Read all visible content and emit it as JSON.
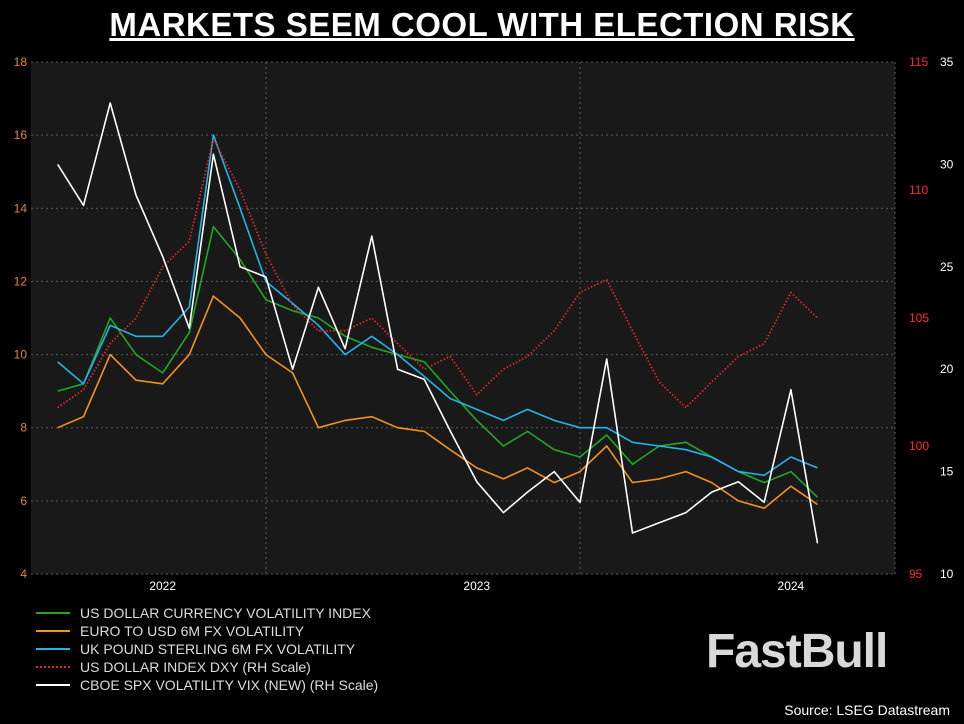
{
  "title": "MARKETS SEEM COOL WITH ELECTION RISK",
  "source": "Source: LSEG Datastream",
  "logo": "FastBull",
  "colors": {
    "background": "#000000",
    "plot_background": "#191919",
    "grid": "#5a5a5a",
    "left_axis": "#e8852a",
    "dxy_axis": "#ff2a2a",
    "vix_axis": "#ffffff"
  },
  "chart_data": {
    "type": "line",
    "x_ticks": [
      "2022",
      "2023",
      "2024"
    ],
    "x_range": [
      "2021-08-01",
      "2024-05-01"
    ],
    "axes": {
      "left": {
        "range": [
          4,
          18
        ],
        "ticks": [
          4,
          6,
          8,
          10,
          12,
          14,
          16,
          18
        ]
      },
      "right_dxy": {
        "range": [
          95,
          115
        ],
        "ticks": [
          95,
          100,
          105,
          110,
          115
        ]
      },
      "right_vix": {
        "range": [
          10,
          35
        ],
        "ticks": [
          10,
          15,
          20,
          25,
          30,
          35
        ]
      }
    },
    "grid": true,
    "legend_position": "bottom-left",
    "series": [
      {
        "name": "US DOLLAR CURRENCY VOLATILITY INDEX",
        "color": "#1fa824",
        "style": "solid",
        "axis": "left",
        "points": [
          [
            "2021-09-01",
            9.0
          ],
          [
            "2021-10-01",
            9.2
          ],
          [
            "2021-11-01",
            11.0
          ],
          [
            "2021-12-01",
            10.0
          ],
          [
            "2022-01-01",
            9.5
          ],
          [
            "2022-02-01",
            10.6
          ],
          [
            "2022-03-01",
            13.5
          ],
          [
            "2022-04-01",
            12.6
          ],
          [
            "2022-05-01",
            11.5
          ],
          [
            "2022-06-01",
            11.2
          ],
          [
            "2022-07-01",
            11.0
          ],
          [
            "2022-08-01",
            10.5
          ],
          [
            "2022-09-01",
            10.2
          ],
          [
            "2022-10-01",
            10.0
          ],
          [
            "2022-11-01",
            9.8
          ],
          [
            "2022-12-01",
            9.0
          ],
          [
            "2023-01-01",
            8.2
          ],
          [
            "2023-02-01",
            7.5
          ],
          [
            "2023-03-01",
            7.9
          ],
          [
            "2023-04-01",
            7.4
          ],
          [
            "2023-05-01",
            7.2
          ],
          [
            "2023-06-01",
            7.8
          ],
          [
            "2023-07-01",
            7.0
          ],
          [
            "2023-08-01",
            7.5
          ],
          [
            "2023-09-01",
            7.6
          ],
          [
            "2023-10-01",
            7.2
          ],
          [
            "2023-11-01",
            6.8
          ],
          [
            "2023-12-01",
            6.5
          ],
          [
            "2024-01-01",
            6.8
          ],
          [
            "2024-02-01",
            6.1
          ]
        ]
      },
      {
        "name": "EURO TO USD 6M FX VOLATILITY",
        "color": "#f5911e",
        "style": "solid",
        "axis": "left",
        "points": [
          [
            "2021-09-01",
            8.0
          ],
          [
            "2021-10-01",
            8.3
          ],
          [
            "2021-11-01",
            10.0
          ],
          [
            "2021-12-01",
            9.3
          ],
          [
            "2022-01-01",
            9.2
          ],
          [
            "2022-02-01",
            10.0
          ],
          [
            "2022-03-01",
            11.6
          ],
          [
            "2022-04-01",
            11.0
          ],
          [
            "2022-05-01",
            10.0
          ],
          [
            "2022-06-01",
            9.5
          ],
          [
            "2022-07-01",
            8.0
          ],
          [
            "2022-08-01",
            8.2
          ],
          [
            "2022-09-01",
            8.3
          ],
          [
            "2022-10-01",
            8.0
          ],
          [
            "2022-11-01",
            7.9
          ],
          [
            "2022-12-01",
            7.4
          ],
          [
            "2023-01-01",
            6.9
          ],
          [
            "2023-02-01",
            6.6
          ],
          [
            "2023-03-01",
            6.9
          ],
          [
            "2023-04-01",
            6.5
          ],
          [
            "2023-05-01",
            6.8
          ],
          [
            "2023-06-01",
            7.5
          ],
          [
            "2023-07-01",
            6.5
          ],
          [
            "2023-08-01",
            6.6
          ],
          [
            "2023-09-01",
            6.8
          ],
          [
            "2023-10-01",
            6.5
          ],
          [
            "2023-11-01",
            6.0
          ],
          [
            "2023-12-01",
            5.8
          ],
          [
            "2024-01-01",
            6.4
          ],
          [
            "2024-02-01",
            5.9
          ]
        ]
      },
      {
        "name": "UK POUND STERLING 6M FX VOLATILITY",
        "color": "#22b4e8",
        "style": "solid",
        "axis": "left",
        "points": [
          [
            "2021-09-01",
            9.8
          ],
          [
            "2021-10-01",
            9.2
          ],
          [
            "2021-11-01",
            10.8
          ],
          [
            "2021-12-01",
            10.5
          ],
          [
            "2022-01-01",
            10.5
          ],
          [
            "2022-02-01",
            11.3
          ],
          [
            "2022-03-01",
            16.0
          ],
          [
            "2022-04-01",
            14.0
          ],
          [
            "2022-05-01",
            12.0
          ],
          [
            "2022-06-01",
            11.4
          ],
          [
            "2022-07-01",
            10.8
          ],
          [
            "2022-08-01",
            10.0
          ],
          [
            "2022-09-01",
            10.5
          ],
          [
            "2022-10-01",
            10.0
          ],
          [
            "2022-11-01",
            9.4
          ],
          [
            "2022-12-01",
            8.8
          ],
          [
            "2023-01-01",
            8.5
          ],
          [
            "2023-02-01",
            8.2
          ],
          [
            "2023-03-01",
            8.5
          ],
          [
            "2023-04-01",
            8.2
          ],
          [
            "2023-05-01",
            8.0
          ],
          [
            "2023-06-01",
            8.0
          ],
          [
            "2023-07-01",
            7.6
          ],
          [
            "2023-08-01",
            7.5
          ],
          [
            "2023-09-01",
            7.4
          ],
          [
            "2023-10-01",
            7.2
          ],
          [
            "2023-11-01",
            6.8
          ],
          [
            "2023-12-01",
            6.7
          ],
          [
            "2024-01-01",
            7.2
          ],
          [
            "2024-02-01",
            6.9
          ]
        ]
      },
      {
        "name": "US DOLLAR INDEX DXY (RH Scale)",
        "color": "#e0282a",
        "style": "dotted",
        "axis": "right_dxy",
        "points": [
          [
            "2021-09-01",
            101.5
          ],
          [
            "2021-10-01",
            102.2
          ],
          [
            "2021-11-01",
            104.0
          ],
          [
            "2021-12-01",
            105.0
          ],
          [
            "2022-01-01",
            107.0
          ],
          [
            "2022-02-01",
            108.0
          ],
          [
            "2022-03-01",
            112.0
          ],
          [
            "2022-04-01",
            110.0
          ],
          [
            "2022-05-01",
            107.5
          ],
          [
            "2022-06-01",
            105.5
          ],
          [
            "2022-07-01",
            104.5
          ],
          [
            "2022-08-01",
            104.5
          ],
          [
            "2022-09-01",
            105.0
          ],
          [
            "2022-10-01",
            104.0
          ],
          [
            "2022-11-01",
            103.0
          ],
          [
            "2022-12-01",
            103.5
          ],
          [
            "2023-01-01",
            102.0
          ],
          [
            "2023-02-01",
            103.0
          ],
          [
            "2023-03-01",
            103.5
          ],
          [
            "2023-04-01",
            104.5
          ],
          [
            "2023-05-01",
            106.0
          ],
          [
            "2023-06-01",
            106.5
          ],
          [
            "2023-07-01",
            104.5
          ],
          [
            "2023-08-01",
            102.5
          ],
          [
            "2023-09-01",
            101.5
          ],
          [
            "2023-10-01",
            102.5
          ],
          [
            "2023-11-01",
            103.5
          ],
          [
            "2023-12-01",
            104.0
          ],
          [
            "2024-01-01",
            106.0
          ],
          [
            "2024-02-01",
            105.0
          ]
        ]
      },
      {
        "name": "CBOE SPX VOLATILITY VIX (NEW) (RH Scale)",
        "color": "#ffffff",
        "style": "solid",
        "axis": "right_vix",
        "points": [
          [
            "2021-09-01",
            30.0
          ],
          [
            "2021-10-01",
            28.0
          ],
          [
            "2021-11-01",
            33.0
          ],
          [
            "2021-12-01",
            28.5
          ],
          [
            "2022-01-01",
            25.5
          ],
          [
            "2022-02-01",
            22.0
          ],
          [
            "2022-03-01",
            30.5
          ],
          [
            "2022-04-01",
            25.0
          ],
          [
            "2022-05-01",
            24.5
          ],
          [
            "2022-06-01",
            20.0
          ],
          [
            "2022-07-01",
            24.0
          ],
          [
            "2022-08-01",
            21.0
          ],
          [
            "2022-09-01",
            26.5
          ],
          [
            "2022-10-01",
            20.0
          ],
          [
            "2022-11-01",
            19.5
          ],
          [
            "2022-12-01",
            17.0
          ],
          [
            "2023-01-01",
            14.5
          ],
          [
            "2023-02-01",
            13.0
          ],
          [
            "2023-03-01",
            14.0
          ],
          [
            "2023-04-01",
            15.0
          ],
          [
            "2023-05-01",
            13.5
          ],
          [
            "2023-06-01",
            20.5
          ],
          [
            "2023-07-01",
            12.0
          ],
          [
            "2023-08-01",
            12.5
          ],
          [
            "2023-09-01",
            13.0
          ],
          [
            "2023-10-01",
            14.0
          ],
          [
            "2023-11-01",
            14.5
          ],
          [
            "2023-12-01",
            13.5
          ],
          [
            "2024-01-01",
            19.0
          ],
          [
            "2024-02-01",
            11.5
          ]
        ]
      }
    ]
  }
}
